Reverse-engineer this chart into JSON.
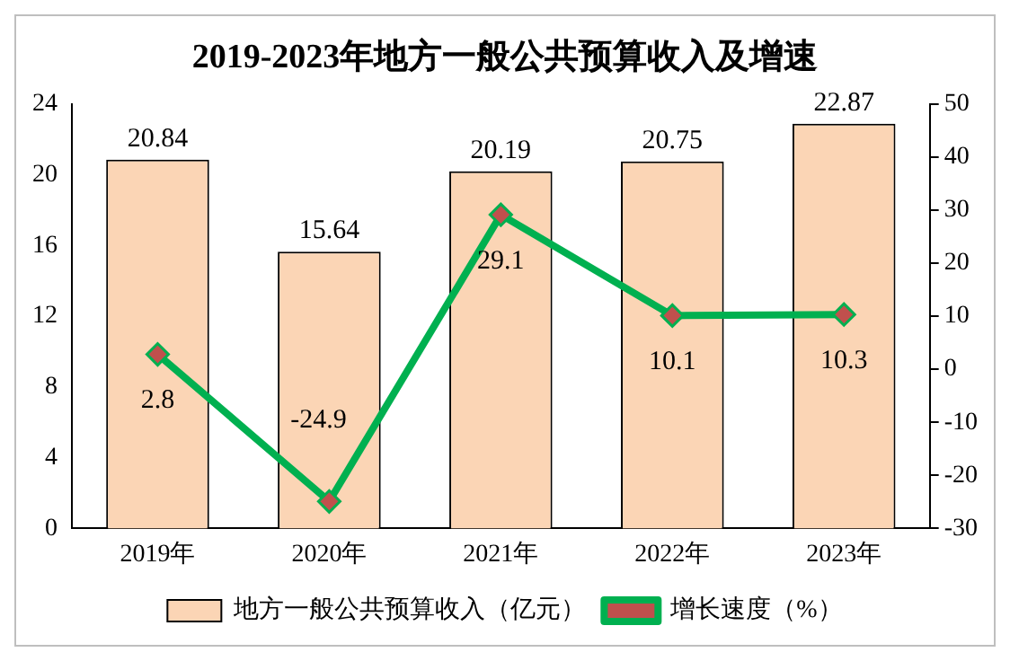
{
  "chart_data": {
    "type": "bar",
    "title": "2019-2023年地方一般公共预算收入及增速",
    "categories": [
      "2019年",
      "2020年",
      "2021年",
      "2022年",
      "2023年"
    ],
    "series": [
      {
        "name": "地方一般公共预算收入（亿元）",
        "color": "#fbd5b5",
        "values": [
          20.84,
          15.64,
          20.19,
          20.75,
          22.87
        ]
      },
      {
        "name": "增长速度（%）",
        "type": "line",
        "axis": "y2",
        "color": "#00b050",
        "values": [
          2.8,
          -24.9,
          29.1,
          10.1,
          10.3
        ]
      }
    ],
    "ylim": [
      0,
      24
    ],
    "yticks": [
      0,
      4,
      8,
      12,
      16,
      20,
      24
    ],
    "y2lim": [
      -30,
      50
    ],
    "y2ticks": [
      -30,
      -20,
      -10,
      0,
      10,
      20,
      30,
      40,
      50
    ],
    "data_labels": true,
    "legend": "bottom",
    "marker": "diamond",
    "grid": false
  }
}
